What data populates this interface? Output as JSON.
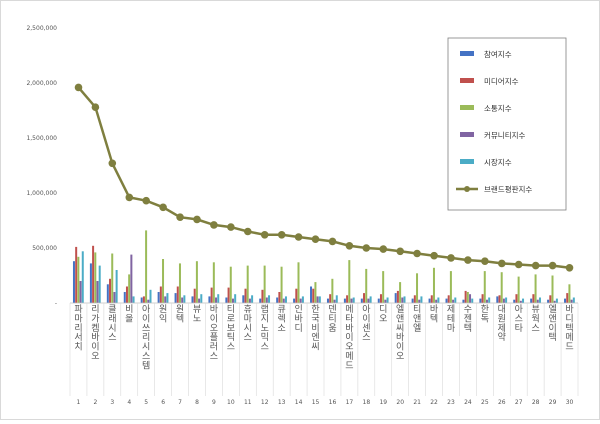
{
  "chart_data": {
    "type": "bar",
    "title": "",
    "xlabel": "",
    "ylabel": "",
    "ylim": [
      0,
      2500000
    ],
    "yticks": [
      "2,500,000",
      "2,000,000",
      "1,500,000",
      "1,000,000",
      "500,000",
      "-"
    ],
    "ytick_values": [
      2500000,
      2000000,
      1500000,
      1000000,
      500000,
      0
    ],
    "categories": [
      "파마리서치",
      "리가켐바이오",
      "클래시스",
      "비올",
      "아이쓰리시스템",
      "원익",
      "원텍",
      "뷰노",
      "바이오플러스",
      "티로보틱스",
      "휴마시스",
      "랩지노믹스",
      "큐렉소",
      "인바디",
      "한국비엔씨",
      "덴티움",
      "메타바이오메드",
      "아이센스",
      "디오",
      "엘앤씨바이오",
      "티앤엘",
      "바텍",
      "제테마",
      "수젠텍",
      "한독",
      "대원제약",
      "아스타",
      "뷰웍스",
      "엘앤이텍",
      "바디텍메드"
    ],
    "ranks": [
      "1",
      "2",
      "3",
      "4",
      "5",
      "6",
      "7",
      "8",
      "9",
      "10",
      "11",
      "12",
      "13",
      "14",
      "15",
      "16",
      "17",
      "18",
      "19",
      "20",
      "21",
      "22",
      "23",
      "24",
      "25",
      "26",
      "27",
      "28",
      "29",
      "30"
    ],
    "series": [
      {
        "name": "참여지수",
        "color": "#4472c4",
        "kind": "bar",
        "values": [
          380000,
          360000,
          170000,
          100000,
          50000,
          100000,
          90000,
          60000,
          60000,
          50000,
          70000,
          40000,
          50000,
          40000,
          150000,
          40000,
          40000,
          40000,
          40000,
          90000,
          40000,
          40000,
          40000,
          30000,
          40000,
          60000,
          30000,
          40000,
          30000,
          40000
        ]
      },
      {
        "name": "미디어지수",
        "color": "#c0504d",
        "kind": "bar",
        "values": [
          510000,
          520000,
          220000,
          150000,
          60000,
          150000,
          150000,
          130000,
          140000,
          140000,
          130000,
          120000,
          100000,
          130000,
          130000,
          80000,
          70000,
          90000,
          80000,
          110000,
          70000,
          70000,
          70000,
          110000,
          80000,
          70000,
          80000,
          80000,
          70000,
          90000
        ]
      },
      {
        "name": "소통지수",
        "color": "#9bbb59",
        "kind": "bar",
        "values": [
          420000,
          460000,
          450000,
          260000,
          660000,
          400000,
          360000,
          380000,
          370000,
          330000,
          340000,
          340000,
          330000,
          370000,
          190000,
          220000,
          390000,
          310000,
          290000,
          190000,
          270000,
          320000,
          290000,
          100000,
          290000,
          280000,
          240000,
          260000,
          250000,
          170000
        ]
      },
      {
        "name": "커뮤니티지수",
        "color": "#8064a2",
        "kind": "bar",
        "values": [
          200000,
          200000,
          100000,
          440000,
          30000,
          60000,
          50000,
          40000,
          50000,
          40000,
          40000,
          50000,
          40000,
          40000,
          60000,
          30000,
          40000,
          40000,
          30000,
          50000,
          30000,
          30000,
          30000,
          80000,
          30000,
          40000,
          20000,
          30000,
          20000,
          30000
        ]
      },
      {
        "name": "시장지수",
        "color": "#4bacc6",
        "kind": "bar",
        "values": [
          470000,
          340000,
          300000,
          60000,
          120000,
          90000,
          70000,
          80000,
          80000,
          80000,
          70000,
          70000,
          60000,
          60000,
          60000,
          70000,
          50000,
          60000,
          50000,
          60000,
          60000,
          50000,
          50000,
          40000,
          50000,
          50000,
          40000,
          50000,
          40000,
          50000
        ]
      },
      {
        "name": "브랜드평판지수",
        "color": "#7f7f3f",
        "kind": "line",
        "values": [
          1960000,
          1780000,
          1270000,
          960000,
          930000,
          870000,
          780000,
          760000,
          710000,
          690000,
          650000,
          620000,
          620000,
          600000,
          580000,
          560000,
          520000,
          500000,
          490000,
          470000,
          450000,
          430000,
          410000,
          390000,
          380000,
          360000,
          350000,
          340000,
          340000,
          320000
        ]
      }
    ],
    "legend_position": "top-right",
    "grid": false
  }
}
